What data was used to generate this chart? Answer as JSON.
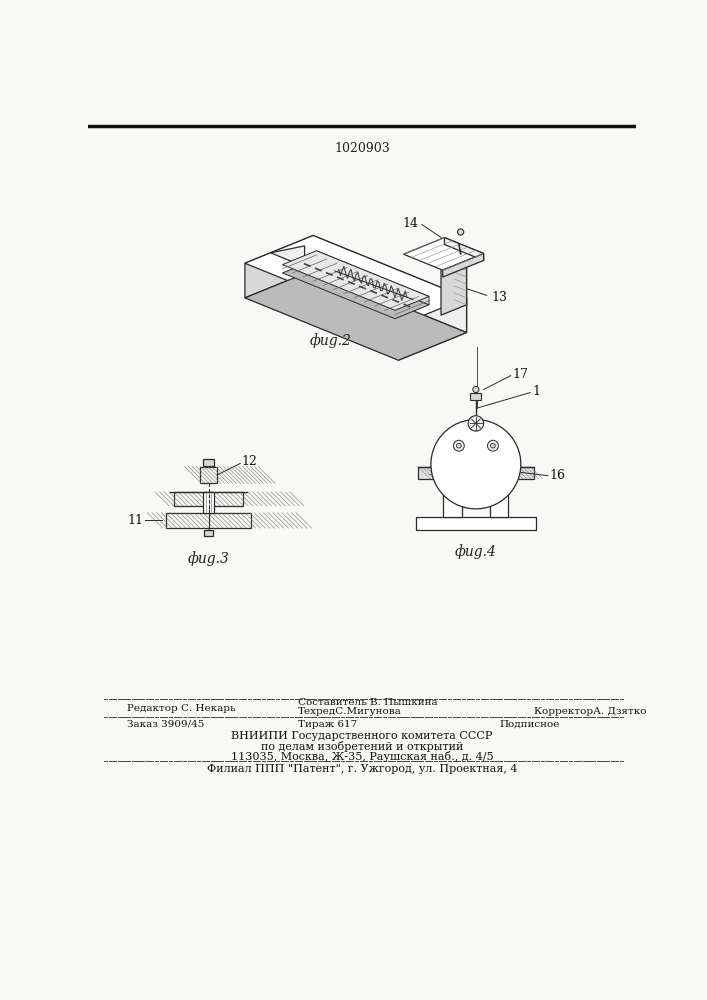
{
  "patent_number": "1020903",
  "background_color": "#f8f8f5",
  "footer": {
    "editor_label": "Редактор С. Некарь",
    "composer_label": "Составитель В. Пышкина",
    "techred_label": "ТехредС.Мигунова",
    "corrector_label": "КорректорА. Дзятко",
    "order_label": "Заказ 3909/45",
    "tirage_label": "Тираж 617",
    "podpisnoe_label": "Подписное",
    "vniipи_line1": "ВНИИПИ Государственного комитета СССР",
    "vniipи_line2": "по делам изобретений и открытий",
    "vniipи_line3": "113035, Москва, Ж-35, Раушская наб., д. 4/5",
    "filial_line": "Филиал ППП \"Патент\", г. Ужгород, ул. Проектная, 4"
  },
  "fig2_caption": "фиg.2",
  "fig3_caption": "фиg.3",
  "fig4_caption": "фиg.4",
  "label_13": "13",
  "label_14": "14",
  "label_11": "11",
  "label_12": "12",
  "label_16": "16",
  "label_17": "17",
  "label_1": "1"
}
